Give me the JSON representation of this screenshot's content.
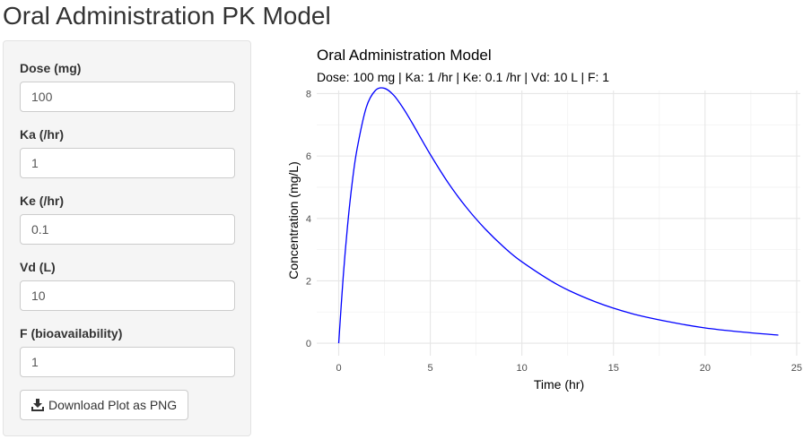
{
  "page": {
    "title": "Oral Administration PK Model"
  },
  "sidebar": {
    "fields": [
      {
        "label": "Dose (mg)",
        "value": "100"
      },
      {
        "label": "Ka (/hr)",
        "value": "1"
      },
      {
        "label": "Ke (/hr)",
        "value": "0.1"
      },
      {
        "label": "Vd (L)",
        "value": "10"
      },
      {
        "label": "F (bioavailability)",
        "value": "1"
      }
    ],
    "download_label": "Download Plot as PNG",
    "download_icon": "download-icon"
  },
  "chart_data": {
    "type": "line",
    "title": "Oral Administration Model",
    "subtitle": "Dose: 100 mg | Ka: 1 /hr | Ke: 0.1 /hr | Vd: 10 L | F: 1",
    "xlabel": "Time (hr)",
    "ylabel": "Concentration (mg/L)",
    "xlim": [
      -1.2,
      25.2
    ],
    "ylim": [
      -0.4,
      8.1
    ],
    "xticks": [
      0,
      5,
      10,
      15,
      20,
      25
    ],
    "yticks": [
      0,
      2,
      4,
      6,
      8
    ],
    "grid": true,
    "line_color": "#0000ff",
    "series": [
      {
        "x": [
          0,
          0.25,
          0.5,
          0.75,
          1,
          1.5,
          2,
          2.5,
          3,
          3.5,
          4,
          5,
          6,
          7,
          8,
          9,
          10,
          12,
          14,
          16,
          18,
          20,
          22,
          24
        ],
        "y": [
          0,
          2.16,
          3.87,
          5.21,
          6.22,
          7.55,
          8.1,
          8.17,
          7.95,
          7.55,
          7.07,
          6.05,
          5.12,
          4.33,
          3.66,
          3.09,
          2.61,
          1.86,
          1.33,
          0.95,
          0.69,
          0.49,
          0.36,
          0.26
        ]
      }
    ]
  }
}
